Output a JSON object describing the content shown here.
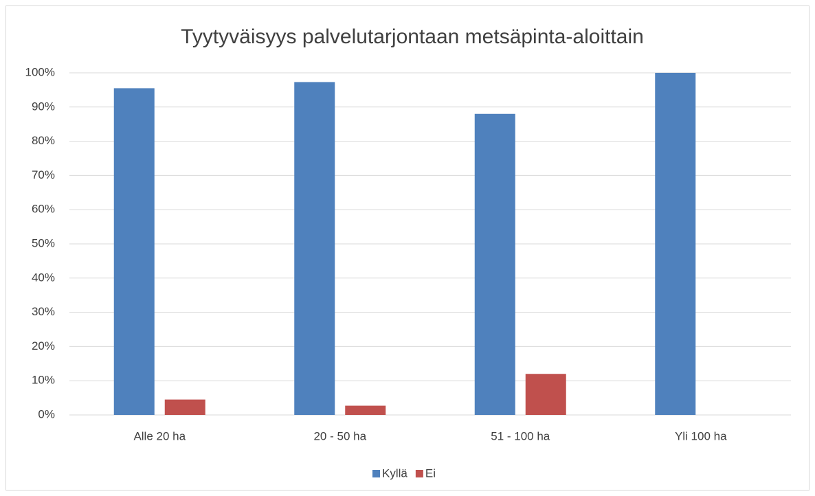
{
  "chart_data": {
    "type": "bar",
    "title": "Tyytyväisyys palvelutarjontaan metsäpinta-aloittain",
    "categories": [
      "Alle 20 ha",
      "20 - 50 ha",
      "51 - 100 ha",
      "Yli 100 ha"
    ],
    "series": [
      {
        "name": "Kyllä",
        "color": "#4f81bd",
        "values": [
          95.5,
          97.3,
          88,
          100
        ]
      },
      {
        "name": "Ei",
        "color": "#c0504d",
        "values": [
          4.5,
          2.7,
          12,
          0
        ]
      }
    ],
    "ylim": [
      0,
      100
    ],
    "yticks": [
      {
        "value": 0,
        "label": "0%"
      },
      {
        "value": 10,
        "label": "10%"
      },
      {
        "value": 20,
        "label": "20%"
      },
      {
        "value": 30,
        "label": "30%"
      },
      {
        "value": 40,
        "label": "40%"
      },
      {
        "value": 50,
        "label": "50%"
      },
      {
        "value": 60,
        "label": "60%"
      },
      {
        "value": 70,
        "label": "70%"
      },
      {
        "value": 80,
        "label": "80%"
      },
      {
        "value": 90,
        "label": "90%"
      },
      {
        "value": 100,
        "label": "100%"
      }
    ],
    "grid": true,
    "legend": "bottom"
  }
}
